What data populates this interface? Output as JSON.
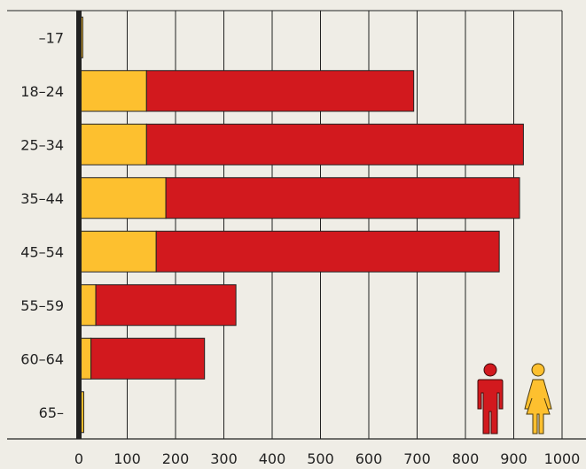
{
  "chart_data": {
    "type": "bar",
    "stacked": true,
    "orientation": "horizontal",
    "categories": [
      "–17",
      "18–24",
      "25–34",
      "35–44",
      "45–54",
      "55–59",
      "60–64",
      "65–"
    ],
    "series": [
      {
        "values": [
          8,
          140,
          140,
          180,
          160,
          35,
          25,
          10
        ],
        "color": "#fdc02f"
      },
      {
        "values": [
          0,
          553,
          780,
          732,
          710,
          290,
          235,
          0
        ],
        "color": "#d2191e"
      }
    ],
    "xticks": [
      "0",
      "100",
      "200",
      "300",
      "400",
      "500",
      "600",
      "700",
      "800",
      "900",
      "1000"
    ],
    "xlim": [
      0,
      1000
    ],
    "grid": true,
    "legend_icons": [
      {
        "name": "man-icon",
        "color": "#d2191e"
      },
      {
        "name": "woman-icon",
        "color": "#fdc02f"
      }
    ]
  }
}
